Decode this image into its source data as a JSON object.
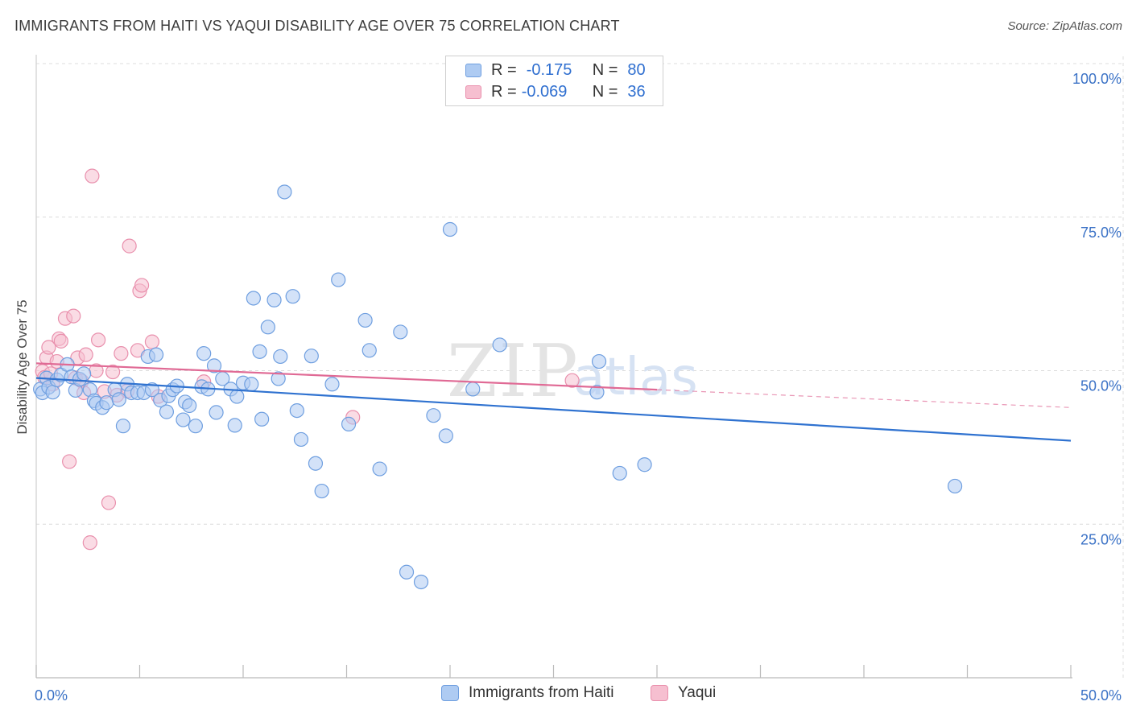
{
  "title": "IMMIGRANTS FROM HAITI VS YAQUI DISABILITY AGE OVER 75 CORRELATION CHART",
  "source": "Source: ZipAtlas.com",
  "watermark": {
    "zip": "ZIP",
    "atlas": "atlas"
  },
  "legend": {
    "haiti": {
      "r_label": "R =",
      "r_value": "-0.175",
      "n_label": "N =",
      "n_value": "80"
    },
    "yaqui": {
      "r_label": "R =",
      "r_value": "-0.069",
      "n_label": "N =",
      "n_value": "36"
    }
  },
  "bottom_legend": {
    "haiti": "Immigrants from Haiti",
    "yaqui": "Yaqui"
  },
  "colors": {
    "haiti_fill": "#aecbf2",
    "haiti_stroke": "#6f9fe0",
    "haiti_line": "#2f72d0",
    "yaqui_fill": "#f6bfd0",
    "yaqui_stroke": "#e990ad",
    "yaqui_line": "#e06a95",
    "tick_label": "#3b72c6",
    "grid": "#dcdcdc"
  },
  "chart_data": {
    "type": "scatter",
    "title": "IMMIGRANTS FROM HAITI VS YAQUI DISABILITY AGE OVER 75 CORRELATION CHART",
    "xlabel": "",
    "ylabel": "Disability Age Over 75",
    "xlim": [
      0,
      50
    ],
    "ylim": [
      0,
      100
    ],
    "x_tick_labels": [
      "0.0%",
      "50.0%"
    ],
    "y_ticks": [
      25,
      50,
      75,
      100
    ],
    "y_tick_labels": [
      "25.0%",
      "50.0%",
      "75.0%",
      "100.0%"
    ],
    "grid": true,
    "series": [
      {
        "name": "Immigrants from Haiti",
        "points": [
          [
            0.2,
            47.0
          ],
          [
            0.3,
            46.4
          ],
          [
            0.5,
            48.8
          ],
          [
            0.6,
            47.3
          ],
          [
            0.8,
            46.5
          ],
          [
            1.0,
            48.5
          ],
          [
            1.2,
            49.3
          ],
          [
            1.5,
            51.0
          ],
          [
            1.7,
            49.0
          ],
          [
            1.9,
            46.8
          ],
          [
            2.1,
            48.6
          ],
          [
            2.3,
            49.5
          ],
          [
            2.6,
            46.9
          ],
          [
            2.8,
            45.1
          ],
          [
            2.9,
            44.7
          ],
          [
            3.2,
            44.0
          ],
          [
            3.4,
            44.8
          ],
          [
            3.8,
            46.9
          ],
          [
            4.0,
            45.3
          ],
          [
            4.2,
            41.0
          ],
          [
            4.4,
            47.8
          ],
          [
            4.6,
            46.4
          ],
          [
            4.9,
            46.4
          ],
          [
            5.2,
            46.4
          ],
          [
            5.4,
            52.3
          ],
          [
            5.6,
            46.9
          ],
          [
            5.8,
            52.6
          ],
          [
            6.0,
            45.2
          ],
          [
            6.3,
            43.3
          ],
          [
            6.4,
            45.9
          ],
          [
            6.6,
            46.9
          ],
          [
            6.8,
            47.5
          ],
          [
            7.1,
            42.0
          ],
          [
            7.2,
            44.9
          ],
          [
            7.4,
            44.3
          ],
          [
            7.7,
            41.0
          ],
          [
            8.0,
            47.4
          ],
          [
            8.1,
            52.8
          ],
          [
            8.3,
            47.0
          ],
          [
            8.6,
            50.8
          ],
          [
            8.7,
            43.2
          ],
          [
            9.0,
            48.7
          ],
          [
            9.4,
            47.0
          ],
          [
            9.6,
            41.1
          ],
          [
            9.7,
            45.8
          ],
          [
            10.0,
            48.0
          ],
          [
            10.4,
            47.8
          ],
          [
            10.5,
            61.8
          ],
          [
            10.8,
            53.1
          ],
          [
            10.9,
            42.1
          ],
          [
            11.2,
            57.1
          ],
          [
            11.5,
            61.5
          ],
          [
            11.7,
            48.7
          ],
          [
            11.8,
            52.3
          ],
          [
            12.0,
            79.1
          ],
          [
            12.4,
            62.1
          ],
          [
            12.6,
            43.5
          ],
          [
            12.8,
            38.8
          ],
          [
            13.3,
            52.4
          ],
          [
            13.5,
            34.9
          ],
          [
            13.8,
            30.4
          ],
          [
            14.3,
            47.8
          ],
          [
            14.6,
            64.8
          ],
          [
            15.1,
            41.3
          ],
          [
            15.9,
            58.2
          ],
          [
            16.1,
            53.3
          ],
          [
            16.6,
            34.0
          ],
          [
            17.6,
            56.3
          ],
          [
            17.9,
            17.2
          ],
          [
            18.6,
            15.6
          ],
          [
            19.2,
            42.7
          ],
          [
            19.8,
            39.4
          ],
          [
            20.0,
            73.0
          ],
          [
            21.1,
            47.0
          ],
          [
            22.4,
            54.2
          ],
          [
            27.1,
            46.5
          ],
          [
            27.2,
            51.5
          ],
          [
            28.2,
            33.3
          ],
          [
            29.4,
            34.7
          ],
          [
            44.4,
            31.2
          ]
        ],
        "trend": {
          "x": [
            0,
            50
          ],
          "y": [
            48.8,
            38.6
          ]
        }
      },
      {
        "name": "Yaqui",
        "points": [
          [
            0.3,
            49.9
          ],
          [
            0.4,
            48.9
          ],
          [
            0.5,
            52.1
          ],
          [
            0.6,
            53.8
          ],
          [
            0.7,
            49.5
          ],
          [
            0.8,
            47.8
          ],
          [
            1.0,
            51.5
          ],
          [
            1.1,
            55.2
          ],
          [
            1.2,
            54.8
          ],
          [
            1.4,
            58.5
          ],
          [
            1.6,
            35.2
          ],
          [
            1.8,
            58.9
          ],
          [
            1.9,
            48.8
          ],
          [
            2.0,
            52.1
          ],
          [
            2.2,
            48.3
          ],
          [
            2.3,
            46.4
          ],
          [
            2.4,
            52.6
          ],
          [
            2.6,
            22.0
          ],
          [
            2.7,
            81.7
          ],
          [
            2.9,
            50.0
          ],
          [
            3.0,
            55.0
          ],
          [
            3.3,
            46.6
          ],
          [
            3.5,
            28.5
          ],
          [
            3.7,
            49.8
          ],
          [
            3.9,
            46.0
          ],
          [
            4.1,
            52.8
          ],
          [
            4.4,
            46.7
          ],
          [
            4.5,
            70.3
          ],
          [
            4.9,
            53.3
          ],
          [
            5.0,
            63.0
          ],
          [
            5.1,
            63.9
          ],
          [
            5.6,
            54.7
          ],
          [
            5.9,
            45.8
          ],
          [
            8.1,
            48.2
          ],
          [
            15.3,
            42.4
          ],
          [
            25.9,
            48.4
          ]
        ],
        "trend": {
          "x": [
            0,
            30
          ],
          "y": [
            51.2,
            46.9
          ]
        },
        "trend_dashed": {
          "x": [
            30,
            50
          ],
          "y": [
            46.9,
            44.0
          ]
        }
      }
    ]
  },
  "axis": {
    "y_label": "Disability Age Over 75"
  }
}
